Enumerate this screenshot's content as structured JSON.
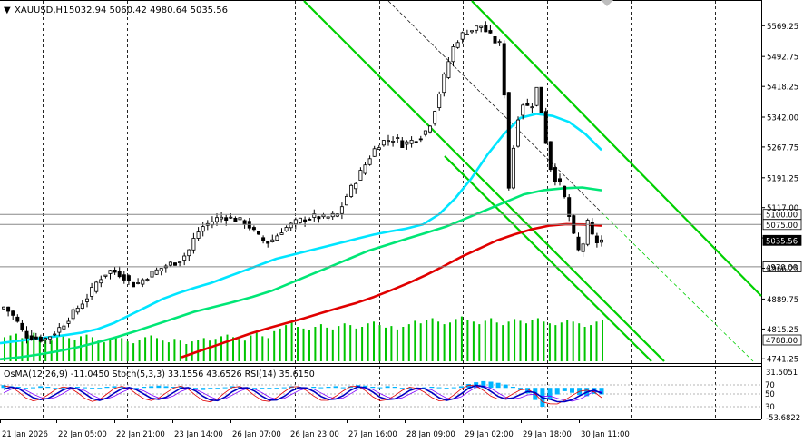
{
  "header": {
    "menu_glyph": "▼",
    "symbol": "XAUUSD,H1",
    "ohlc": "5032.94 5060.42 4980.64 5035.56"
  },
  "indicator_header": "OsMA(12,26,9) -11.0450  Stoch(5,3,3) 33.1556 43.6526  RSI(14) 35.6150",
  "colors": {
    "background": "#ffffff",
    "bull_candle": "#008000",
    "bear_candle": "#000000",
    "ma_fast": "#00e5ff",
    "ma_mid": "#00e676",
    "ma_slow": "#e00000",
    "channel": "#00d000",
    "volume": "#00c400",
    "osma": "#00b4ff",
    "stoch_main": "#0000c0",
    "stoch_signal": "#e00000",
    "rsi": "#8000ff"
  },
  "chart_data": [
    {
      "type": "candlestick",
      "symbol": "XAUUSD",
      "timeframe": "H1",
      "x_tick_labels": [
        "21 Jan 2026",
        "22 Jan 05:00",
        "22 Jan 21:00",
        "23 Jan 14:00",
        "26 Jan 07:00",
        "26 Jan 23:00",
        "27 Jan 16:00",
        "28 Jan 09:00",
        "29 Jan 02:00",
        "29 Jan 18:00",
        "30 Jan 11:00"
      ],
      "y_ticks": [
        5569.25,
        5492.75,
        5418.25,
        5342.0,
        5267.75,
        5191.25,
        5117.0,
        5041.75,
        4966.25,
        4889.75,
        4815.25,
        4741.25
      ],
      "y_tick_labels": [
        "5569.25",
        "5492.75",
        "5418.25",
        "5342.00",
        "5267.75",
        "5191.25",
        "5117.00",
        "5041.75",
        "4966.25",
        "4889.75",
        "4815.25",
        "4741.25"
      ],
      "ylim": [
        4735,
        5615
      ],
      "price_levels": [
        {
          "label": "5100.00",
          "value": 5100.0,
          "style": "boxed"
        },
        {
          "label": "5075.00",
          "value": 5075.0,
          "style": "boxed"
        },
        {
          "label": "5035.56",
          "value": 5035.56,
          "style": "current"
        },
        {
          "label": "4970.00",
          "value": 4970.0,
          "style": "boxed"
        },
        {
          "label": "4788.00",
          "value": 4788.0,
          "style": "boxed"
        }
      ],
      "close_path": [
        4870,
        4855,
        4830,
        4800,
        4795,
        4790,
        4792,
        4805,
        4820,
        4840,
        4860,
        4880,
        4900,
        4930,
        4950,
        4960,
        4955,
        4945,
        4925,
        4930,
        4945,
        4955,
        4965,
        4975,
        4980,
        4990,
        5010,
        5050,
        5070,
        5080,
        5090,
        5095,
        5090,
        5085,
        5080,
        5060,
        5040,
        5030,
        5040,
        5060,
        5070,
        5080,
        5088,
        5092,
        5095,
        5090,
        5095,
        5100,
        5140,
        5170,
        5200,
        5230,
        5260,
        5280,
        5285,
        5290,
        5275,
        5280,
        5290,
        5300,
        5330,
        5390,
        5450,
        5510,
        5540,
        5555,
        5560,
        5570,
        5550,
        5530,
        5520,
        5160,
        5330,
        5380,
        5360,
        5420,
        5300,
        5200,
        5180,
        5130,
        5050,
        4995,
        5080,
        5030,
        5035.56
      ],
      "moving_averages": [
        {
          "color": "ma_fast",
          "values": [
            4780,
            4785,
            4790,
            4795,
            4800,
            4806,
            4815,
            4830,
            4850,
            4870,
            4890,
            4905,
            4918,
            4930,
            4945,
            4960,
            4975,
            4990,
            5000,
            5010,
            5020,
            5030,
            5040,
            5050,
            5058,
            5065,
            5075,
            5100,
            5140,
            5190,
            5250,
            5300,
            5340,
            5350,
            5345,
            5330,
            5300,
            5260
          ]
        },
        {
          "color": "ma_mid",
          "values": [
            4740,
            4745,
            4752,
            4760,
            4770,
            4782,
            4795,
            4810,
            4826,
            4842,
            4858,
            4870,
            4882,
            4895,
            4910,
            4930,
            4950,
            4970,
            4990,
            5010,
            5025,
            5040,
            5055,
            5070,
            5090,
            5110,
            5130,
            5150,
            5160,
            5165,
            5167,
            5160
          ]
        },
        {
          "color": "ma_slow",
          "values": [
            4745,
            4760,
            4775,
            4790,
            4805,
            4818,
            4830,
            4842,
            4855,
            4868,
            4880,
            4895,
            4912,
            4930,
            4950,
            4972,
            4995,
            5015,
            5035,
            5050,
            5063,
            5072,
            5076,
            5075,
            5072
          ]
        }
      ],
      "channel": {
        "color": "channel",
        "lines": 3,
        "direction": "descending"
      }
    },
    {
      "type": "bar",
      "name": "volume",
      "values": [
        28,
        30,
        32,
        27,
        31,
        33,
        29,
        26,
        24,
        28,
        30,
        27,
        25,
        29,
        31,
        28,
        24,
        22,
        26,
        29,
        27,
        23,
        21,
        25,
        28,
        30,
        27,
        24,
        22,
        26,
        24,
        20,
        23,
        25,
        27,
        24,
        26,
        29,
        31,
        28,
        26,
        24,
        30,
        33,
        29,
        27,
        35,
        38,
        42,
        45,
        40,
        38,
        36,
        40,
        43,
        39,
        37,
        41,
        44,
        42,
        38,
        40,
        44,
        46,
        42,
        39,
        41,
        37,
        40,
        43,
        47,
        44,
        48,
        50,
        46,
        43,
        45,
        49,
        52,
        48,
        46,
        43,
        47,
        50,
        45,
        42,
        46,
        49,
        47,
        44,
        48,
        50,
        46,
        44,
        42,
        45,
        48,
        46,
        44,
        40,
        42,
        46,
        48
      ]
    },
    {
      "type": "line",
      "name": "indicators",
      "y_tick_labels": [
        "31.5051",
        "-53.6822"
      ],
      "ylim": [
        -53.6822,
        31.5051
      ],
      "level_labels": [
        "70",
        "50",
        "30"
      ],
      "osma_values": [
        5,
        3,
        2,
        0,
        1,
        3,
        2,
        0,
        -1,
        1,
        2,
        1,
        -1,
        0,
        2,
        3,
        2,
        1,
        0,
        2,
        3,
        4,
        3,
        2,
        3,
        1,
        -2,
        -4,
        -3,
        -2,
        1,
        3,
        2,
        1,
        0,
        -1,
        -2,
        0,
        1,
        3,
        2,
        1,
        2,
        1,
        2,
        3,
        1,
        3,
        5,
        4,
        2,
        1,
        3,
        2,
        0,
        -1,
        -2,
        1,
        2,
        1,
        0,
        1,
        3,
        7,
        10,
        12,
        11,
        9,
        6,
        2,
        -4,
        -10,
        -22,
        -34,
        -20,
        -12,
        -6,
        -9,
        -13,
        -15,
        -11,
        -12
      ]
    }
  ]
}
